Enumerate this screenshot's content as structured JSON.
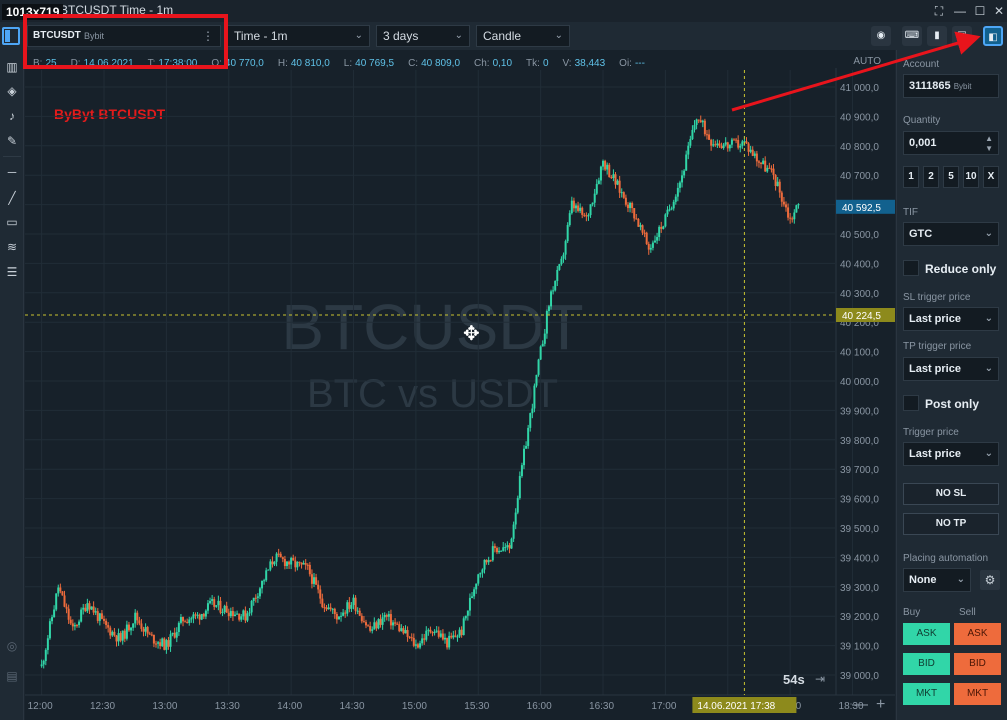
{
  "window": {
    "size_badge": "1013x719",
    "title": "BTCUSDT Time - 1m"
  },
  "toolbar": {
    "symbol": "BTCUSDT",
    "exchange": "Bybit",
    "timeframe": "Time - 1m",
    "range": "3 days",
    "chart_type": "Candle"
  },
  "infobar": [
    {
      "k": "B:",
      "v": "25"
    },
    {
      "k": "D:",
      "v": "14.06.2021"
    },
    {
      "k": "T:",
      "v": "17:38:00"
    },
    {
      "k": "O:",
      "v": "40 770,0"
    },
    {
      "k": "H:",
      "v": "40 810,0"
    },
    {
      "k": "L:",
      "v": "40 769,5"
    },
    {
      "k": "C:",
      "v": "40 809,0"
    },
    {
      "k": "Ch:",
      "v": "0,10"
    },
    {
      "k": "Tk:",
      "v": "0"
    },
    {
      "k": "V:",
      "v": "38,443"
    },
    {
      "k": "Oi:",
      "v": "---"
    }
  ],
  "chart": {
    "scale_mode": "AUTO",
    "annotation": "ByByt BTCUSDT",
    "watermark_main": "BTCUSDT",
    "watermark_sub": "BTC vs USDT",
    "timer": "54s",
    "crosshair_price_label": "40 224,5",
    "last_price_label": "40 592,5",
    "crosshair_time_label": "14.06.2021 17:38",
    "colors": {
      "up": "#31d6a8",
      "down": "#ee6b3c",
      "crosshair": "#c8c430",
      "last_price_bg": "#12618e",
      "crosshair_bg": "#8d8a1c"
    }
  },
  "chart_data": {
    "type": "candlestick",
    "title": "",
    "xlabel": "",
    "ylabel": "",
    "x_ticks": [
      "12:00",
      "12:30",
      "13:00",
      "13:30",
      "14:00",
      "14:30",
      "15:00",
      "15:30",
      "16:00",
      "16:30",
      "17:00",
      "17:30",
      "18:00",
      "18:30"
    ],
    "y_ticks": [
      "39 000,0",
      "39 100,0",
      "39 200,0",
      "39 300,0",
      "39 400,0",
      "39 500,0",
      "39 600,0",
      "39 700,0",
      "39 800,0",
      "39 900,0",
      "40 000,0",
      "40 100,0",
      "40 200,0",
      "40 300,0",
      "40 400,0",
      "40 500,0",
      "40 600,0",
      "40 700,0",
      "40 800,0",
      "40 900,0",
      "41 000,0"
    ],
    "ylim": [
      39000,
      41000
    ],
    "series": [
      {
        "x": [
          "12:00",
          "12:08",
          "12:15",
          "12:22",
          "12:30",
          "12:38",
          "12:45",
          "12:52",
          "13:00",
          "13:08",
          "13:15",
          "13:22",
          "13:30",
          "13:38",
          "13:45",
          "13:52",
          "14:00",
          "14:08",
          "14:15",
          "14:22",
          "14:30",
          "14:38",
          "14:45",
          "14:52",
          "15:00",
          "15:08",
          "15:15",
          "15:22",
          "15:30",
          "15:38",
          "15:45",
          "15:52",
          "16:00",
          "16:05",
          "16:10",
          "16:15",
          "16:22",
          "16:30",
          "16:38",
          "16:45",
          "16:52",
          "17:00",
          "17:08",
          "17:15",
          "17:22",
          "17:30",
          "17:38",
          "17:45",
          "17:52",
          "18:00",
          "18:04"
        ],
        "close": [
          39030,
          39300,
          39150,
          39250,
          39170,
          39120,
          39200,
          39130,
          39100,
          39190,
          39200,
          39240,
          39220,
          39200,
          39300,
          39400,
          39380,
          39360,
          39250,
          39200,
          39250,
          39150,
          39200,
          39160,
          39100,
          39160,
          39110,
          39150,
          39350,
          39430,
          39430,
          39750,
          40100,
          40300,
          40400,
          40600,
          40550,
          40750,
          40650,
          40570,
          40450,
          40550,
          40700,
          40900,
          40820,
          40800,
          40810,
          40750,
          40700,
          40550,
          40600
        ]
      }
    ]
  },
  "side_panel": {
    "account_label": "Account",
    "account_value": "3111865",
    "account_sub": "Bybit",
    "quantity_label": "Quantity",
    "quantity_value": "0,001",
    "quick_qty": [
      "1",
      "2",
      "5",
      "10",
      "X"
    ],
    "tif_label": "TIF",
    "tif_value": "GTC",
    "reduce_only": "Reduce only",
    "sl_label": "SL trigger price",
    "sl_value": "Last price",
    "tp_label": "TP trigger price",
    "tp_value": "Last price",
    "post_only": "Post only",
    "trigger_label": "Trigger price",
    "trigger_value": "Last price",
    "no_sl": "NO SL",
    "no_tp": "NO TP",
    "automation_label": "Placing automation",
    "automation_value": "None",
    "buy_label": "Buy",
    "sell_label": "Sell",
    "ask": "ASK",
    "bid": "BID",
    "mkt": "MKT"
  }
}
